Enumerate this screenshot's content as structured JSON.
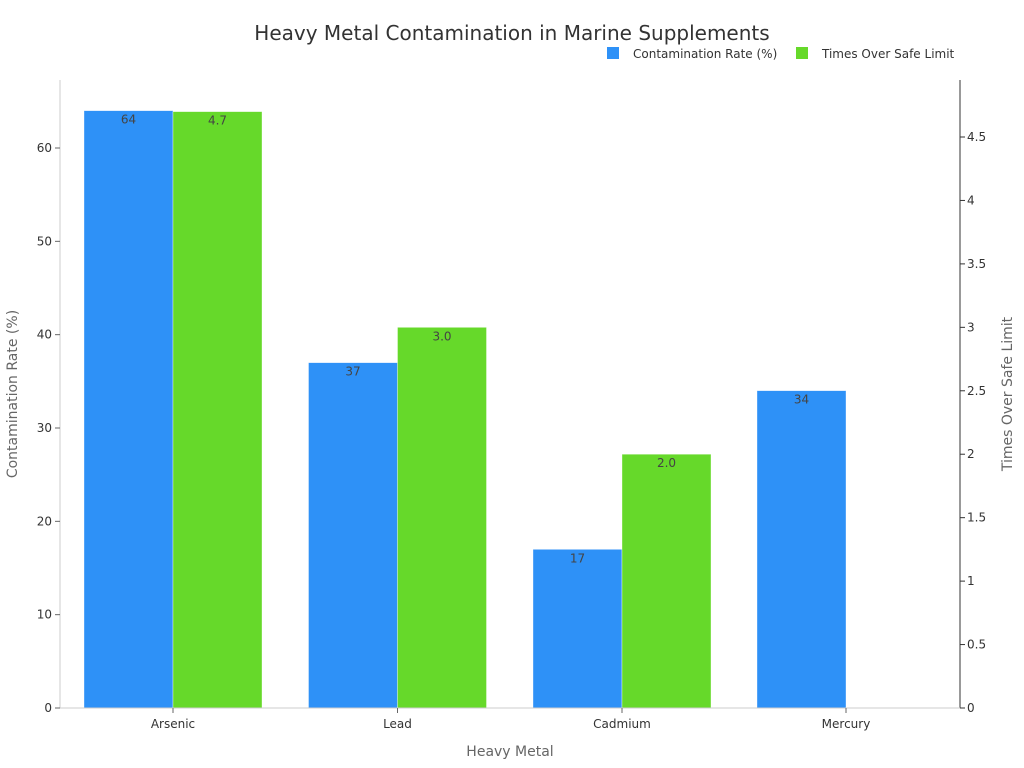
{
  "chart_data": {
    "type": "bar",
    "title": "Heavy Metal Contamination in Marine Supplements",
    "xlabel": "Heavy Metal",
    "ylabel": "Contamination Rate (%)",
    "y2label": "Times Over Safe Limit",
    "categories": [
      "Arsenic",
      "Lead",
      "Cadmium",
      "Mercury"
    ],
    "series": [
      {
        "name": "Contamination Rate (%)",
        "axis": "left",
        "color": "#2e91f7",
        "values": [
          64,
          37,
          17,
          34
        ],
        "labels": [
          "64",
          "37",
          "17",
          "34"
        ]
      },
      {
        "name": "Times Over Safe Limit",
        "axis": "right",
        "color": "#66d92a",
        "values": [
          4.7,
          3.0,
          2.0,
          null
        ],
        "labels": [
          "4.7",
          "3.0",
          "2.0",
          ""
        ]
      }
    ],
    "ylim": [
      0,
      67.3
    ],
    "y2lim": [
      0,
      4.95
    ],
    "yticks": [
      0,
      10,
      20,
      30,
      40,
      50,
      60
    ],
    "y2ticks": [
      "0",
      "0.5",
      "1",
      "1.5",
      "2",
      "2.5",
      "3",
      "3.5",
      "4",
      "4.5"
    ],
    "legend_position": "top-right",
    "grid": false
  },
  "colors": {
    "series1": "#2e91f7",
    "series2": "#66d92a",
    "axis": "#cccccc",
    "right_axis": "#333333"
  }
}
